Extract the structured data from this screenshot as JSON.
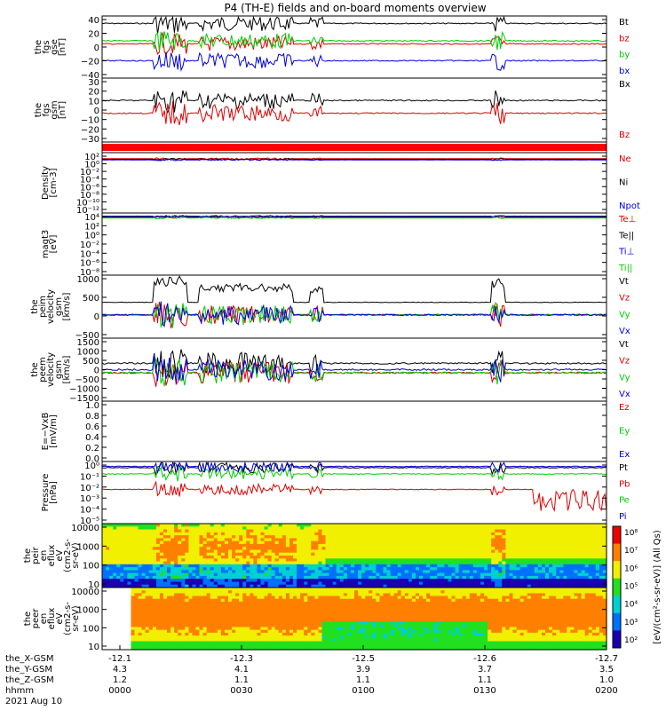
{
  "title": "P4 (TH-E) fields and on-board moments overview",
  "colors": {
    "black": "#000000",
    "red": "#dd0000",
    "green": "#00cc00",
    "blue": "#0000dd"
  },
  "chart_data": [
    {
      "id": "fgs-gse",
      "type": "line",
      "ylabel": [
        "the",
        "fgs",
        "gse",
        "[nT]"
      ],
      "yticks": [
        "40",
        "20",
        "0",
        "−20",
        "−40"
      ],
      "ylim": [
        -40,
        40
      ],
      "series": [
        {
          "name": "Bt",
          "color": "black"
        },
        {
          "name": "bz",
          "color": "red"
        },
        {
          "name": "by",
          "color": "green"
        },
        {
          "name": "bx",
          "color": "blue"
        }
      ]
    },
    {
      "id": "fgs-gsm",
      "type": "line",
      "ylabel": [
        "the",
        "fgs",
        "gsm",
        "[nT]"
      ],
      "yticks": [
        "30",
        "20",
        "10",
        "0",
        "−10",
        "−20",
        "−30"
      ],
      "ylim": [
        -35,
        35
      ],
      "series": [
        {
          "name": "Bx",
          "color": "black"
        },
        {
          "name": "Bz",
          "color": "red"
        }
      ]
    },
    {
      "id": "density",
      "type": "line",
      "ylabel": [
        "Density",
        "[cm-3]"
      ],
      "yticks": [
        "10²",
        "10⁰",
        "10⁻²",
        "10⁻⁴",
        "10⁻⁶",
        "10⁻⁸",
        "10⁻¹⁰",
        "10⁻¹²"
      ],
      "log": true,
      "series": [
        {
          "name": "Ne",
          "color": "red"
        },
        {
          "name": "Ni",
          "color": "black"
        },
        {
          "name": "Npot",
          "color": "blue"
        }
      ]
    },
    {
      "id": "temp",
      "type": "line",
      "ylabel": [
        "magt3",
        "[eV]"
      ],
      "yticks": [
        "10⁴",
        "10²",
        "10⁰",
        "10⁻²",
        "10⁻⁴",
        "10⁻⁶",
        "10⁻⁸"
      ],
      "log": true,
      "series": [
        {
          "name": "Te⊥",
          "color": "red"
        },
        {
          "name": "Te||",
          "color": "black"
        },
        {
          "name": "Ti⊥",
          "color": "blue"
        },
        {
          "name": "Ti||",
          "color": "green"
        }
      ]
    },
    {
      "id": "peim-vel",
      "type": "line",
      "ylabel": [
        "the",
        "peim",
        "velocity",
        "gsm",
        "[km/s]"
      ],
      "yticks": [
        "1000",
        "500",
        "0",
        "−500"
      ],
      "ylim": [
        -500,
        1000
      ],
      "series": [
        {
          "name": "Vt",
          "color": "black"
        },
        {
          "name": "Vz",
          "color": "red"
        },
        {
          "name": "Vy",
          "color": "green"
        },
        {
          "name": "Vx",
          "color": "blue"
        }
      ]
    },
    {
      "id": "peem-vel",
      "type": "line",
      "ylabel": [
        "the",
        "peem",
        "velocity",
        "gsm",
        "[km/s]"
      ],
      "yticks": [
        "1500",
        "1000",
        "500",
        "0",
        "−500",
        "−1000",
        "−1500"
      ],
      "ylim": [
        -1500,
        1500
      ],
      "series": [
        {
          "name": "Vt",
          "color": "black"
        },
        {
          "name": "Vz",
          "color": "red"
        },
        {
          "name": "Vy",
          "color": "green"
        },
        {
          "name": "Vx",
          "color": "blue"
        }
      ]
    },
    {
      "id": "efield",
      "type": "line",
      "ylabel": [
        "E=−VxB",
        "[mV/m]"
      ],
      "yticks": [
        "1.0",
        "0.8",
        "0.6",
        "0.4",
        "0.2",
        "0.0"
      ],
      "ylim": [
        0,
        1
      ],
      "series": [
        {
          "name": "Ez",
          "color": "red"
        },
        {
          "name": "Ey",
          "color": "green"
        },
        {
          "name": "Ex",
          "color": "blue"
        }
      ]
    },
    {
      "id": "pressure",
      "type": "line",
      "ylabel": [
        "Pressure",
        "[nPa]"
      ],
      "yticks": [
        "10⁰",
        "10⁻¹",
        "10⁻²",
        "10⁻³",
        "10⁻⁴",
        "10⁻⁵"
      ],
      "log": true,
      "series": [
        {
          "name": "Pt",
          "color": "black"
        },
        {
          "name": "Pb",
          "color": "red"
        },
        {
          "name": "Pe",
          "color": "green"
        },
        {
          "name": "Pi",
          "color": "blue"
        }
      ]
    },
    {
      "id": "peir",
      "type": "heatmap",
      "ylabel": [
        "the",
        "peir",
        "en",
        "eflux",
        "eV",
        "(cm2-s-",
        "sr-eV)"
      ],
      "yticks": [
        "10000",
        "1000",
        "100",
        "10"
      ]
    },
    {
      "id": "peer",
      "type": "heatmap",
      "ylabel": [
        "the",
        "peer",
        "en",
        "eflux",
        "eV",
        "(cm2-s-",
        "sr-eV)"
      ],
      "yticks": [
        "10000",
        "1000",
        "100",
        "10"
      ]
    }
  ],
  "colorbar": {
    "label": "[eV/(cm²-s-sr-eV)] (All Qs)",
    "ticks": [
      "10⁸",
      "10⁷",
      "10⁶",
      "10⁵",
      "10⁴",
      "10³",
      "10²"
    ]
  },
  "xaxis": {
    "row_labels": [
      "the_X-GSM",
      "the_Y-GSM",
      "the_Z-GSM",
      "hhmm",
      "2021 Aug 10"
    ],
    "ticks": [
      {
        "x": "-12.1",
        "y": "4.3",
        "z": "1.2",
        "t": "0000"
      },
      {
        "x": "-12.3",
        "y": "4.1",
        "z": "1.1",
        "t": "0030"
      },
      {
        "x": "-12.5",
        "y": "3.9",
        "z": "1.1",
        "t": "0100"
      },
      {
        "x": "-12.6",
        "y": "3.7",
        "z": "1.1",
        "t": "0130"
      },
      {
        "x": "-12.7",
        "y": "3.5",
        "z": "1.0",
        "t": "0200"
      }
    ]
  }
}
